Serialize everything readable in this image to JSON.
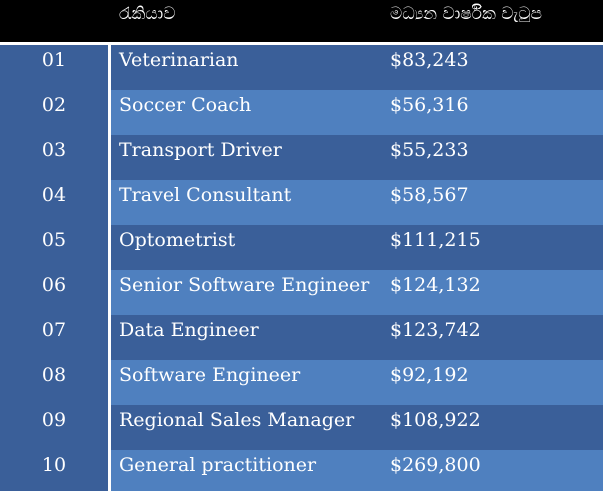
{
  "header": {
    "job_label": "රැකියාව",
    "salary_label": "මධ්‍යන වාර්ෂික වැටුප"
  },
  "rows": [
    {
      "num": "01",
      "job": "Veterinarian",
      "salary": "$83,243"
    },
    {
      "num": "02",
      "job": "Soccer Coach",
      "salary": "$56,316"
    },
    {
      "num": "03",
      "job": "Transport Driver",
      "salary": "$55,233"
    },
    {
      "num": "04",
      "job": "Travel Consultant",
      "salary": "$58,567"
    },
    {
      "num": "05",
      "job": "Optometrist",
      "salary": "$111,215"
    },
    {
      "num": "06",
      "job": "Senior Software Engineer",
      "salary": "$124,132"
    },
    {
      "num": "07",
      "job": "Data Engineer",
      "salary": "$123,742"
    },
    {
      "num": "08",
      "job": "Software Engineer",
      "salary": "$92,192"
    },
    {
      "num": "09",
      "job": "Regional Sales Manager",
      "salary": "$108,922"
    },
    {
      "num": "10",
      "job": "General practitioner",
      "salary": "$269,800"
    }
  ],
  "colors": {
    "header_bg": "#000000",
    "row_dark": "#3a5f99",
    "row_light": "#4f80bf",
    "text": "#ffffff"
  }
}
